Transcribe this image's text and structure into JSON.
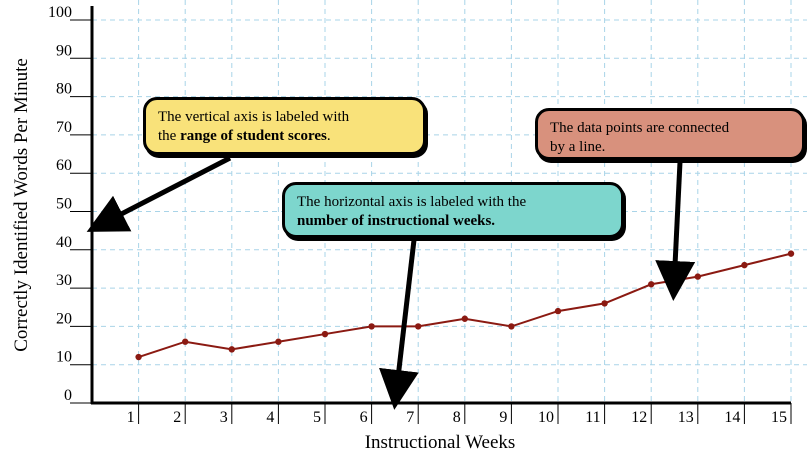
{
  "chart_data": {
    "type": "line",
    "title": "",
    "xlabel": "Instructional Weeks",
    "ylabel": "Correctly Identified Words Per Minute",
    "xlim": [
      0,
      15
    ],
    "ylim": [
      0,
      100
    ],
    "x_ticks": [
      1,
      2,
      3,
      4,
      5,
      6,
      7,
      8,
      9,
      10,
      11,
      12,
      13,
      14,
      15
    ],
    "y_ticks": [
      0,
      10,
      20,
      30,
      40,
      50,
      60,
      70,
      80,
      90,
      100
    ],
    "grid": true,
    "legend": "none",
    "series": [
      {
        "x": [
          1,
          2,
          3,
          4,
          5,
          6,
          7,
          8,
          9,
          10,
          11,
          12,
          13,
          14,
          15
        ],
        "values": [
          12,
          16,
          14,
          16,
          18,
          20,
          20,
          22,
          20,
          24,
          26,
          31,
          33,
          36,
          39
        ],
        "color": "#8b1a12"
      }
    ],
    "annotations": [
      {
        "id": "vertical",
        "parts": [
          {
            "text": "The vertical axis is labeled with"
          },
          {
            "text": "the "
          },
          {
            "text": "range of student scores",
            "bold": true
          },
          {
            "text": "."
          }
        ],
        "color": "#f9e27a"
      },
      {
        "id": "horizontal",
        "parts": [
          {
            "text": "The horizontal axis is labeled with the"
          },
          {
            "text": "number of instructional weeks.",
            "bold": true
          }
        ],
        "color": "#7dd6cd"
      },
      {
        "id": "connected",
        "parts": [
          {
            "text": "The data points are connected"
          },
          {
            "text": "by a line."
          }
        ],
        "color": "#d8917d"
      }
    ]
  }
}
